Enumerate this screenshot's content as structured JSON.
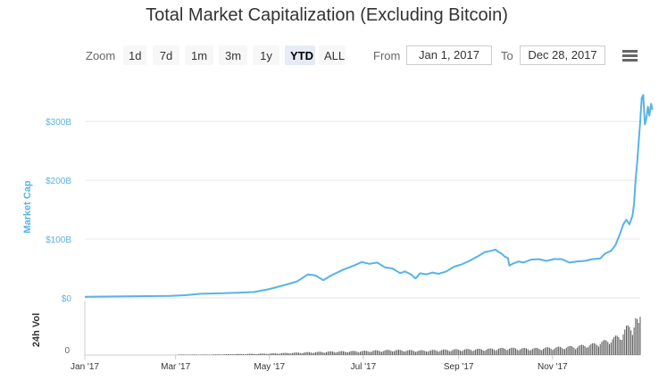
{
  "chart_data": {
    "type": "area",
    "title": "Total Market Capitalization (Excluding Bitcoin)",
    "ylabel": "Market Cap",
    "volume_label": "24h Vol",
    "y_ticks": [
      "$0",
      "$100B",
      "$200B",
      "$300B"
    ],
    "ylim": [
      0,
      370
    ],
    "volume_ticks": [
      "0"
    ],
    "x_ticks": [
      "Jan '17",
      "Mar '17",
      "May '17",
      "Jul '17",
      "Sep '17",
      "Nov '17"
    ],
    "x_tick_days": [
      0,
      59,
      120,
      181,
      243,
      304
    ],
    "xlim_days": [
      0,
      361
    ],
    "grid": true,
    "legend": "none",
    "colors": {
      "line": "#58b3e6",
      "axis_label": "#58b3e6",
      "volume": "#555555"
    },
    "series": [
      {
        "values_unit": "billion USD",
        "points": [
          [
            0,
            2
          ],
          [
            20,
            2.5
          ],
          [
            40,
            3
          ],
          [
            55,
            3.5
          ],
          [
            65,
            4.5
          ],
          [
            75,
            7
          ],
          [
            90,
            8
          ],
          [
            100,
            9
          ],
          [
            110,
            10
          ],
          [
            120,
            15
          ],
          [
            130,
            22
          ],
          [
            138,
            28
          ],
          [
            145,
            40
          ],
          [
            150,
            38
          ],
          [
            155,
            30
          ],
          [
            160,
            38
          ],
          [
            168,
            48
          ],
          [
            175,
            55
          ],
          [
            180,
            61
          ],
          [
            185,
            58
          ],
          [
            190,
            60
          ],
          [
            195,
            52
          ],
          [
            200,
            50
          ],
          [
            205,
            42
          ],
          [
            208,
            45
          ],
          [
            212,
            40
          ],
          [
            215,
            33
          ],
          [
            218,
            42
          ],
          [
            222,
            40
          ],
          [
            226,
            43
          ],
          [
            230,
            41
          ],
          [
            235,
            45
          ],
          [
            240,
            53
          ],
          [
            245,
            57
          ],
          [
            250,
            63
          ],
          [
            255,
            70
          ],
          [
            260,
            78
          ],
          [
            264,
            80
          ],
          [
            267,
            82
          ],
          [
            269,
            78
          ],
          [
            271,
            75
          ],
          [
            273,
            70
          ],
          [
            275,
            68
          ],
          [
            276,
            55
          ],
          [
            278,
            58
          ],
          [
            282,
            62
          ],
          [
            285,
            60
          ],
          [
            290,
            65
          ],
          [
            295,
            66
          ],
          [
            300,
            63
          ],
          [
            305,
            66
          ],
          [
            310,
            66
          ],
          [
            315,
            60
          ],
          [
            320,
            62
          ],
          [
            325,
            63
          ],
          [
            330,
            66
          ],
          [
            335,
            67
          ],
          [
            338,
            75
          ],
          [
            342,
            80
          ],
          [
            345,
            90
          ],
          [
            348,
            110
          ],
          [
            350,
            125
          ],
          [
            352,
            133
          ],
          [
            354,
            125
          ],
          [
            356,
            140
          ],
          [
            357,
            160
          ],
          [
            358,
            200
          ],
          [
            359,
            230
          ],
          [
            360,
            265
          ],
          [
            361,
            300
          ],
          [
            362,
            340
          ],
          [
            363,
            345
          ],
          [
            364,
            295
          ],
          [
            365,
            305
          ],
          [
            366,
            325
          ],
          [
            367,
            310
          ],
          [
            368,
            330
          ],
          [
            369,
            320
          ]
        ]
      }
    ],
    "volume": {
      "ylim": [
        0,
        100
      ],
      "points": [
        [
          60,
          1
        ],
        [
          80,
          1
        ],
        [
          100,
          2
        ],
        [
          120,
          3
        ],
        [
          140,
          5
        ],
        [
          160,
          7
        ],
        [
          180,
          8
        ],
        [
          200,
          10
        ],
        [
          220,
          9
        ],
        [
          240,
          11
        ],
        [
          260,
          12
        ],
        [
          275,
          14
        ],
        [
          290,
          13
        ],
        [
          310,
          16
        ],
        [
          320,
          18
        ],
        [
          330,
          22
        ],
        [
          340,
          30
        ],
        [
          348,
          40
        ],
        [
          352,
          55
        ],
        [
          356,
          60
        ],
        [
          358,
          78
        ],
        [
          360,
          60
        ],
        [
          362,
          90
        ],
        [
          364,
          70
        ],
        [
          366,
          55
        ],
        [
          368,
          60
        ],
        [
          369,
          45
        ]
      ]
    }
  }
}
